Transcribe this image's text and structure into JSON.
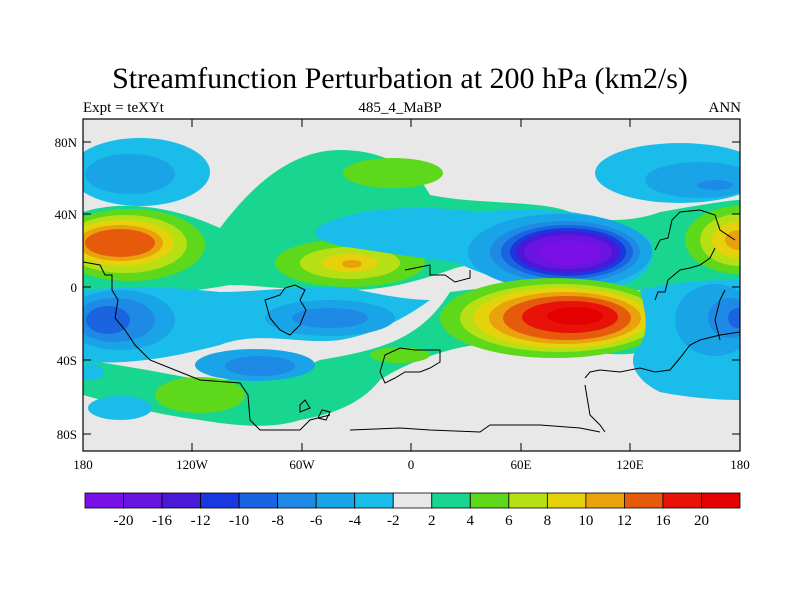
{
  "title": "Streamfunction Perturbation at 200 hPa (km2/s)",
  "subtitle_left": "Expt = teXYt",
  "subtitle_center": "485_4_MaBP",
  "subtitle_right": "ANN",
  "lat_ticks": [
    "80N",
    "40N",
    "0",
    "40S",
    "80S"
  ],
  "lon_ticks": [
    "180",
    "120W",
    "60W",
    "0",
    "60E",
    "120E",
    "180"
  ],
  "colorbar": {
    "labels": [
      "-20",
      "-16",
      "-12",
      "-10",
      "-8",
      "-6",
      "-4",
      "-2",
      "2",
      "4",
      "6",
      "8",
      "10",
      "12",
      "16",
      "20"
    ],
    "colors": [
      "#7a10e8",
      "#6a14e0",
      "#4a18d8",
      "#1a38e0",
      "#1a64e0",
      "#1e8ae6",
      "#18a4e6",
      "#1abcea",
      "#e8e8e8",
      "#18d690",
      "#5ed81a",
      "#b6e014",
      "#e6d20c",
      "#eaa20c",
      "#e65a0c",
      "#e81208",
      "#e40000"
    ]
  },
  "colors": {
    "land_outline": "#000000",
    "background": "#e8e8e8"
  }
}
